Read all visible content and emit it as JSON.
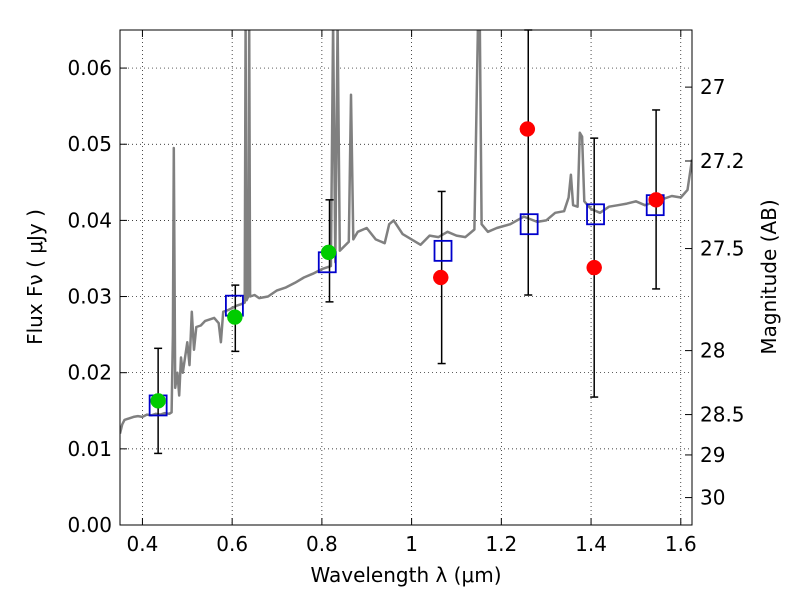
{
  "chart_data": {
    "type": "scatter",
    "xlabel": "Wavelength  λ (μm)",
    "ylabel": "Flux  Fν  ( μJy )",
    "y2label": "Magnitude (AB)",
    "xlim": [
      0.35,
      1.625
    ],
    "ylim": [
      0.0,
      0.065
    ],
    "grid": true,
    "x_ticks": [
      0.4,
      0.6,
      0.8,
      1.0,
      1.2,
      1.4,
      1.6
    ],
    "x_tick_labels": [
      "0.4",
      "0.6",
      "0.8",
      "1",
      "1.2",
      "1.4",
      "1.6"
    ],
    "y_ticks": [
      0.0,
      0.01,
      0.02,
      0.03,
      0.04,
      0.05,
      0.06
    ],
    "y_tick_labels": [
      "0.00",
      "0.01",
      "0.02",
      "0.03",
      "0.04",
      "0.05",
      "0.06"
    ],
    "y2_ticks": [
      {
        "label": "27",
        "flux": 0.0575
      },
      {
        "label": "27.2",
        "flux": 0.0478
      },
      {
        "label": "27.5",
        "flux": 0.0363
      },
      {
        "label": "28",
        "flux": 0.0229
      },
      {
        "label": "28.5",
        "flux": 0.0145
      },
      {
        "label": "29",
        "flux": 0.0092
      },
      {
        "label": "30",
        "flux": 0.0036
      }
    ],
    "series": [
      {
        "kind": "line",
        "color": "#808080",
        "points": [
          [
            0.35,
            0.012
          ],
          [
            0.355,
            0.0132
          ],
          [
            0.36,
            0.0138
          ],
          [
            0.37,
            0.014
          ],
          [
            0.38,
            0.0142
          ],
          [
            0.39,
            0.0143
          ],
          [
            0.4,
            0.0142
          ],
          [
            0.41,
            0.0145
          ],
          [
            0.42,
            0.0144
          ],
          [
            0.43,
            0.0146
          ],
          [
            0.44,
            0.0145
          ],
          [
            0.45,
            0.0147
          ],
          [
            0.46,
            0.0146
          ],
          [
            0.465,
            0.0148
          ],
          [
            0.468,
            0.025
          ],
          [
            0.47,
            0.0495
          ],
          [
            0.473,
            0.018
          ],
          [
            0.478,
            0.02
          ],
          [
            0.482,
            0.017
          ],
          [
            0.486,
            0.022
          ],
          [
            0.49,
            0.02
          ],
          [
            0.5,
            0.024
          ],
          [
            0.505,
            0.021
          ],
          [
            0.51,
            0.028
          ],
          [
            0.515,
            0.023
          ],
          [
            0.52,
            0.026
          ],
          [
            0.53,
            0.0262
          ],
          [
            0.54,
            0.0268
          ],
          [
            0.55,
            0.027
          ],
          [
            0.56,
            0.0272
          ],
          [
            0.57,
            0.0265
          ],
          [
            0.575,
            0.024
          ],
          [
            0.58,
            0.028
          ],
          [
            0.59,
            0.0282
          ],
          [
            0.6,
            0.0285
          ],
          [
            0.61,
            0.0288
          ],
          [
            0.62,
            0.029
          ],
          [
            0.628,
            0.0292
          ],
          [
            0.63,
            0.066
          ],
          [
            0.632,
            0.0295
          ],
          [
            0.636,
            0.03
          ],
          [
            0.638,
            0.066
          ],
          [
            0.64,
            0.03
          ],
          [
            0.65,
            0.0302
          ],
          [
            0.66,
            0.0298
          ],
          [
            0.68,
            0.03
          ],
          [
            0.7,
            0.0308
          ],
          [
            0.72,
            0.0312
          ],
          [
            0.74,
            0.0318
          ],
          [
            0.76,
            0.0325
          ],
          [
            0.78,
            0.033
          ],
          [
            0.8,
            0.0336
          ],
          [
            0.81,
            0.0338
          ],
          [
            0.82,
            0.034
          ],
          [
            0.825,
            0.066
          ],
          [
            0.83,
            0.0345
          ],
          [
            0.835,
            0.066
          ],
          [
            0.84,
            0.036
          ],
          [
            0.86,
            0.0372
          ],
          [
            0.865,
            0.0565
          ],
          [
            0.87,
            0.0375
          ],
          [
            0.88,
            0.0385
          ],
          [
            0.9,
            0.039
          ],
          [
            0.92,
            0.0375
          ],
          [
            0.94,
            0.037
          ],
          [
            0.95,
            0.0395
          ],
          [
            0.96,
            0.04
          ],
          [
            0.98,
            0.0382
          ],
          [
            1.0,
            0.0375
          ],
          [
            1.02,
            0.0368
          ],
          [
            1.04,
            0.038
          ],
          [
            1.06,
            0.0378
          ],
          [
            1.08,
            0.0385
          ],
          [
            1.1,
            0.038
          ],
          [
            1.12,
            0.0378
          ],
          [
            1.14,
            0.0388
          ],
          [
            1.148,
            0.066
          ],
          [
            1.152,
            0.066
          ],
          [
            1.156,
            0.0395
          ],
          [
            1.17,
            0.0385
          ],
          [
            1.19,
            0.039
          ],
          [
            1.22,
            0.0395
          ],
          [
            1.25,
            0.0405
          ],
          [
            1.28,
            0.0398
          ],
          [
            1.3,
            0.04
          ],
          [
            1.32,
            0.041
          ],
          [
            1.34,
            0.0412
          ],
          [
            1.35,
            0.043
          ],
          [
            1.355,
            0.046
          ],
          [
            1.36,
            0.042
          ],
          [
            1.37,
            0.0418
          ],
          [
            1.375,
            0.0515
          ],
          [
            1.38,
            0.051
          ],
          [
            1.385,
            0.0425
          ],
          [
            1.4,
            0.0415
          ],
          [
            1.42,
            0.041
          ],
          [
            1.44,
            0.0418
          ],
          [
            1.46,
            0.042
          ],
          [
            1.48,
            0.0422
          ],
          [
            1.5,
            0.0425
          ],
          [
            1.52,
            0.042
          ],
          [
            1.54,
            0.0424
          ],
          [
            1.56,
            0.0428
          ],
          [
            1.58,
            0.0432
          ],
          [
            1.6,
            0.043
          ],
          [
            1.615,
            0.044
          ],
          [
            1.625,
            0.048
          ]
        ]
      },
      {
        "kind": "square",
        "color": "#0000cc",
        "points": [
          [
            0.435,
            0.0157
          ],
          [
            0.605,
            0.0288
          ],
          [
            0.812,
            0.0345
          ],
          [
            1.07,
            0.036
          ],
          [
            1.262,
            0.0395
          ],
          [
            1.41,
            0.0408
          ],
          [
            1.543,
            0.042
          ]
        ]
      },
      {
        "kind": "circle",
        "color": "#00cc00",
        "points": [
          [
            0.435,
            0.0163
          ],
          [
            0.606,
            0.0273
          ],
          [
            0.815,
            0.0358
          ]
        ]
      },
      {
        "kind": "circle",
        "color": "#ff0000",
        "points": [
          [
            1.065,
            0.0325
          ],
          [
            1.258,
            0.052
          ],
          [
            1.407,
            0.0338
          ],
          [
            1.545,
            0.0427
          ]
        ]
      }
    ],
    "errorbars": [
      {
        "x": 0.435,
        "low": 0.0094,
        "high": 0.0232
      },
      {
        "x": 0.607,
        "low": 0.0228,
        "high": 0.0315
      },
      {
        "x": 0.817,
        "low": 0.0293,
        "high": 0.0427
      },
      {
        "x": 1.067,
        "low": 0.0212,
        "high": 0.0438
      },
      {
        "x": 1.26,
        "low": 0.0302,
        "high": 0.065
      },
      {
        "x": 1.407,
        "low": 0.0168,
        "high": 0.0508
      },
      {
        "x": 1.545,
        "low": 0.031,
        "high": 0.0545
      }
    ]
  }
}
